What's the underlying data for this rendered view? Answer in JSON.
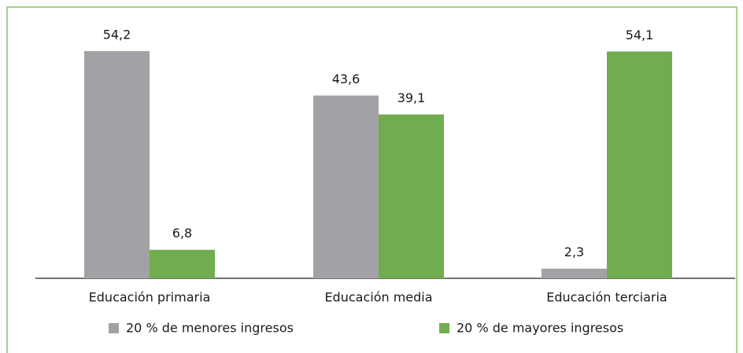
{
  "chart_data": {
    "type": "bar",
    "categories": [
      "Educación primaria",
      "Educación media",
      "Educación terciaria"
    ],
    "series": [
      {
        "name": "20 % de menores ingresos",
        "color": "#a2a2a6",
        "values": [
          54.2,
          43.6,
          2.3
        ],
        "value_labels": [
          "54,2",
          "43,6",
          "2,3"
        ]
      },
      {
        "name": "20 % de mayores ingresos",
        "color": "#70ad50",
        "values": [
          6.8,
          39.1,
          54.1
        ],
        "value_labels": [
          "6,8",
          "39,1",
          "54,1"
        ]
      }
    ]
  }
}
